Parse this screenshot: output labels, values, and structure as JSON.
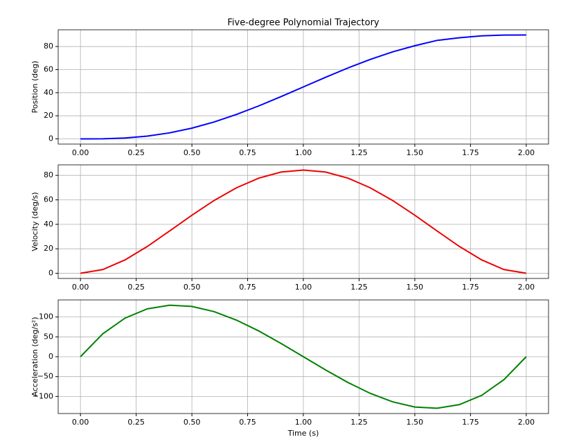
{
  "chart_data": [
    {
      "type": "line",
      "title": "Five-degree Polynomial Trajectory",
      "y_label": "Position (deg)",
      "color": "#0000ff",
      "grid": true,
      "x": [
        0,
        0.1,
        0.2,
        0.3,
        0.4,
        0.5,
        0.6,
        0.7,
        0.8,
        0.9,
        1.0,
        1.1,
        1.2,
        1.3,
        1.4,
        1.5,
        1.6,
        1.7,
        1.8,
        1.9,
        2.0
      ],
      "values": [
        0,
        0.1,
        0.77,
        2.4,
        5.21,
        9.32,
        14.68,
        21.17,
        28.57,
        36.62,
        45,
        53.38,
        61.43,
        68.83,
        75.32,
        80.68,
        85.32,
        87.6,
        89.23,
        89.9,
        90
      ],
      "xlim": [
        -0.1,
        2.1
      ],
      "ylim": [
        -4.5,
        94.5
      ],
      "xticks": [
        {
          "value": 0,
          "label": "0.00"
        },
        {
          "value": 0.25,
          "label": "0.25"
        },
        {
          "value": 0.5,
          "label": "0.50"
        },
        {
          "value": 0.75,
          "label": "0.75"
        },
        {
          "value": 1,
          "label": "1.00"
        },
        {
          "value": 1.25,
          "label": "1.25"
        },
        {
          "value": 1.5,
          "label": "1.50"
        },
        {
          "value": 1.75,
          "label": "1.75"
        },
        {
          "value": 2,
          "label": "2.00"
        }
      ],
      "yticks": [
        0,
        20,
        40,
        60,
        80
      ]
    },
    {
      "type": "line",
      "y_label": "Velocity (deg/s)",
      "color": "#ee0000",
      "grid": true,
      "x": [
        0,
        0.1,
        0.2,
        0.3,
        0.4,
        0.5,
        0.6,
        0.7,
        0.8,
        0.9,
        1.0,
        1.1,
        1.2,
        1.3,
        1.4,
        1.5,
        1.6,
        1.7,
        1.8,
        1.9,
        2.0
      ],
      "values": [
        0,
        3.05,
        10.94,
        21.95,
        34.56,
        47.46,
        59.54,
        69.87,
        77.76,
        82.7,
        84.38,
        82.7,
        77.76,
        69.87,
        59.54,
        47.46,
        34.56,
        21.95,
        10.94,
        3.05,
        0
      ],
      "xlim": [
        -0.1,
        2.1
      ],
      "ylim": [
        -4.22,
        88.6
      ],
      "xticks": [
        {
          "value": 0,
          "label": "0.00"
        },
        {
          "value": 0.25,
          "label": "0.25"
        },
        {
          "value": 0.5,
          "label": "0.50"
        },
        {
          "value": 0.75,
          "label": "0.75"
        },
        {
          "value": 1,
          "label": "1.00"
        },
        {
          "value": 1.25,
          "label": "1.25"
        },
        {
          "value": 1.5,
          "label": "1.50"
        },
        {
          "value": 1.75,
          "label": "1.75"
        },
        {
          "value": 2,
          "label": "2.00"
        }
      ],
      "yticks": [
        0,
        20,
        40,
        60,
        80
      ]
    },
    {
      "type": "line",
      "y_label": "Acceleration (deg/s²)",
      "x_label": "Time (s)",
      "color": "#008000",
      "grid": true,
      "x": [
        0,
        0.1,
        0.2,
        0.3,
        0.4,
        0.5,
        0.6,
        0.7,
        0.8,
        0.9,
        1.0,
        1.1,
        1.2,
        1.3,
        1.4,
        1.5,
        1.6,
        1.7,
        1.8,
        1.9,
        2.0
      ],
      "values": [
        0,
        57.71,
        97.2,
        120.49,
        129.6,
        126.56,
        113.4,
        92.14,
        64.8,
        33.41,
        0,
        -33.41,
        -64.8,
        -92.14,
        -113.4,
        -126.56,
        -129.6,
        -120.49,
        -97.2,
        -57.71,
        0
      ],
      "xlim": [
        -0.1,
        2.1
      ],
      "ylim": [
        -142.9,
        142.9
      ],
      "xticks": [
        {
          "value": 0,
          "label": "0.00"
        },
        {
          "value": 0.25,
          "label": "0.25"
        },
        {
          "value": 0.5,
          "label": "0.50"
        },
        {
          "value": 0.75,
          "label": "0.75"
        },
        {
          "value": 1,
          "label": "1.00"
        },
        {
          "value": 1.25,
          "label": "1.25"
        },
        {
          "value": 1.5,
          "label": "1.50"
        },
        {
          "value": 1.75,
          "label": "1.75"
        },
        {
          "value": 2,
          "label": "2.00"
        }
      ],
      "yticks": [
        {
          "value": -100,
          "label": "−100"
        },
        {
          "value": -50,
          "label": "−50"
        },
        0,
        50,
        100
      ]
    }
  ]
}
